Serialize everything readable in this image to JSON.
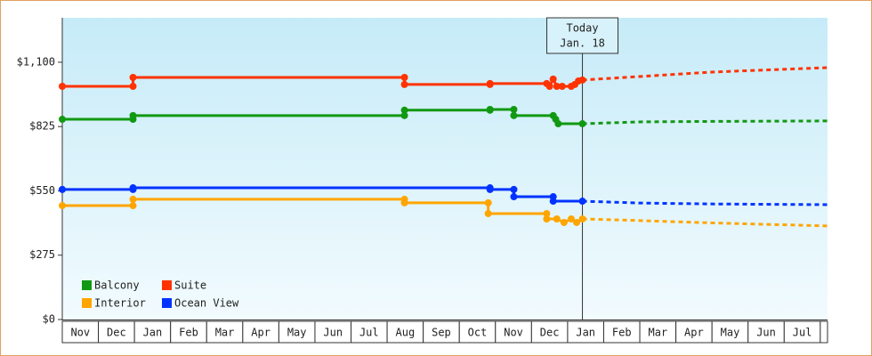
{
  "chart_data": {
    "type": "step-line",
    "xlim": [
      0,
      21.2
    ],
    "ylim": [
      0,
      1290
    ],
    "yticks": [
      {
        "value": 0,
        "label": "$0"
      },
      {
        "value": 275,
        "label": "$275"
      },
      {
        "value": 550,
        "label": "$550"
      },
      {
        "value": 825,
        "label": "$825"
      },
      {
        "value": 1100,
        "label": "$1,100"
      }
    ],
    "xticks": [
      {
        "value": 0.5,
        "label": "Nov"
      },
      {
        "value": 1.5,
        "label": "Dec"
      },
      {
        "value": 2.5,
        "label": "Jan"
      },
      {
        "value": 3.5,
        "label": "Feb"
      },
      {
        "value": 4.5,
        "label": "Mar"
      },
      {
        "value": 5.5,
        "label": "Apr"
      },
      {
        "value": 6.5,
        "label": "May"
      },
      {
        "value": 7.5,
        "label": "Jun"
      },
      {
        "value": 8.5,
        "label": "Jul"
      },
      {
        "value": 9.5,
        "label": "Aug"
      },
      {
        "value": 10.5,
        "label": "Sep"
      },
      {
        "value": 11.5,
        "label": "Oct"
      },
      {
        "value": 12.5,
        "label": "Nov"
      },
      {
        "value": 13.5,
        "label": "Dec"
      },
      {
        "value": 14.5,
        "label": "Jan"
      },
      {
        "value": 15.5,
        "label": "Feb"
      },
      {
        "value": 16.5,
        "label": "Mar"
      },
      {
        "value": 17.5,
        "label": "Apr"
      },
      {
        "value": 18.5,
        "label": "May"
      },
      {
        "value": 19.5,
        "label": "Jun"
      },
      {
        "value": 20.5,
        "label": "Jul"
      }
    ],
    "annotation": {
      "x": 14.41,
      "lines": [
        "Today",
        "Jan. 18"
      ]
    },
    "series": [
      {
        "name": "Balcony",
        "color": "#119911",
        "x": [
          0,
          1.96,
          1.96,
          9.48,
          9.48,
          11.85,
          11.85,
          12.51,
          12.51,
          13.6,
          13.67,
          13.74,
          14.41
        ],
        "values": [
          856,
          856,
          872,
          872,
          895,
          895,
          898,
          898,
          872,
          872,
          856,
          837,
          837
        ],
        "forecast": {
          "x": [
            14.41,
            16,
            18,
            21.2
          ],
          "values": [
            837,
            845,
            847,
            849
          ]
        }
      },
      {
        "name": "Suite",
        "color": "#ff3300",
        "x": [
          0,
          1.96,
          1.96,
          9.48,
          9.48,
          11.85,
          11.85,
          13.42,
          13.5,
          13.6,
          13.7,
          13.85,
          14.1,
          14.2,
          14.3,
          14.41
        ],
        "values": [
          997,
          997,
          1035,
          1035,
          1005,
          1005,
          1009,
          1009,
          997,
          1028,
          997,
          997,
          997,
          1005,
          1020,
          1024
        ],
        "forecast": {
          "x": [
            14.41,
            16,
            18,
            21.2
          ],
          "values": [
            1024,
            1039,
            1058,
            1077
          ]
        }
      },
      {
        "name": "Interior",
        "color": "#ffa500",
        "x": [
          0,
          1.96,
          1.96,
          9.48,
          9.48,
          11.8,
          11.8,
          13.42,
          13.42,
          13.7,
          13.9,
          14.1,
          14.25,
          14.41
        ],
        "values": [
          487,
          487,
          514,
          514,
          499,
          499,
          453,
          453,
          430,
          430,
          415,
          430,
          415,
          430
        ],
        "forecast": {
          "x": [
            14.41,
            16,
            18,
            21.2
          ],
          "values": [
            430,
            423,
            413,
            400
          ]
        }
      },
      {
        "name": "Ocean View",
        "color": "#0033ff",
        "x": [
          0,
          1.96,
          1.96,
          11.85,
          11.85,
          12.51,
          12.51,
          13.6,
          13.6,
          14.41
        ],
        "values": [
          556,
          556,
          563,
          563,
          556,
          556,
          525,
          525,
          506,
          506
        ],
        "forecast": {
          "x": [
            14.41,
            16,
            18,
            21.2
          ],
          "values": [
            506,
            498,
            494,
            491
          ]
        }
      }
    ]
  }
}
